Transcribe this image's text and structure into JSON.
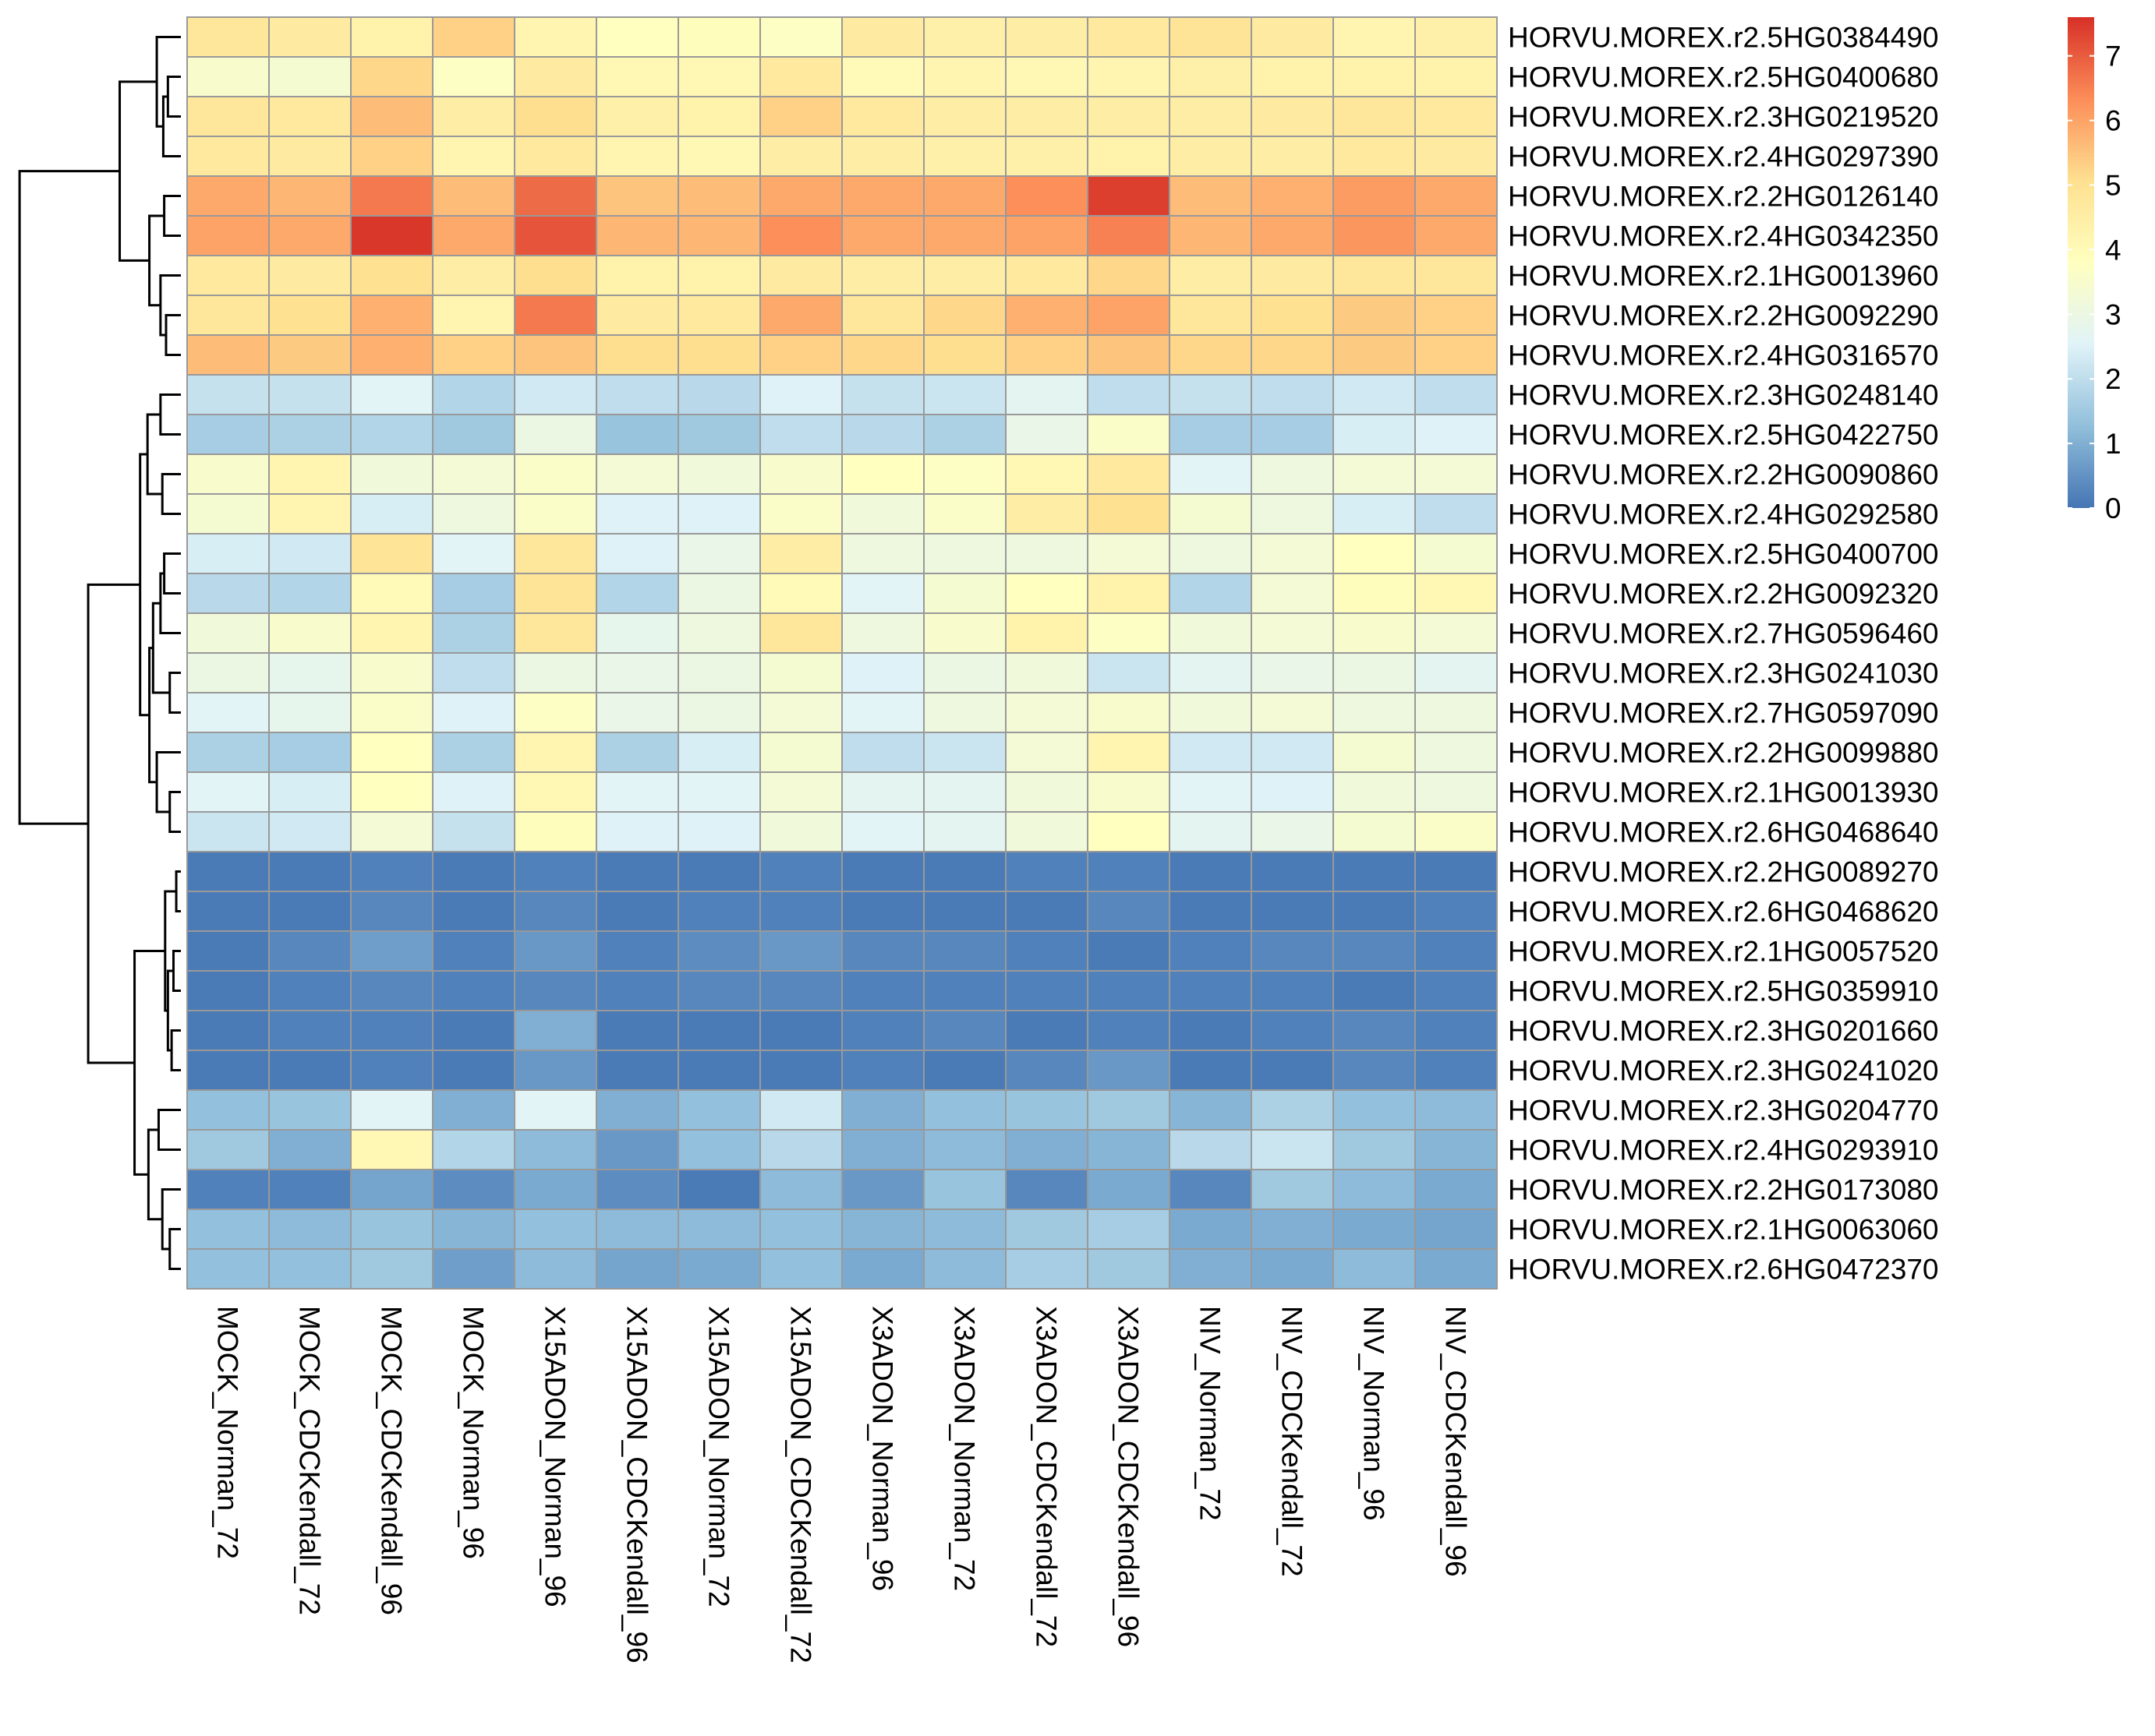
{
  "chart_data": {
    "type": "heatmap",
    "title": "",
    "columns": [
      "MOCK_Norman_72",
      "MOCK_CDCKendall_72",
      "MOCK_CDCKendall_96",
      "MOCK_Norman_96",
      "X15ADON_Norman_96",
      "X15ADON_CDCKendall_96",
      "X15ADON_Norman_72",
      "X15ADON_CDCKendall_72",
      "X3ADON_Norman_96",
      "X3ADON_Norman_72",
      "X3ADON_CDCKendall_72",
      "X3ADON_CDCKendall_96",
      "NIV_Norman_72",
      "NIV_CDCKendall_72",
      "NIV_Norman_96",
      "NIV_CDCKendall_96"
    ],
    "rows": [
      "HORVU.MOREX.r2.5HG0384490",
      "HORVU.MOREX.r2.5HG0400680",
      "HORVU.MOREX.r2.3HG0219520",
      "HORVU.MOREX.r2.4HG0297390",
      "HORVU.MOREX.r2.2HG0126140",
      "HORVU.MOREX.r2.4HG0342350",
      "HORVU.MOREX.r2.1HG0013960",
      "HORVU.MOREX.r2.2HG0092290",
      "HORVU.MOREX.r2.4HG0316570",
      "HORVU.MOREX.r2.3HG0248140",
      "HORVU.MOREX.r2.5HG0422750",
      "HORVU.MOREX.r2.2HG0090860",
      "HORVU.MOREX.r2.4HG0292580",
      "HORVU.MOREX.r2.5HG0400700",
      "HORVU.MOREX.r2.2HG0092320",
      "HORVU.MOREX.r2.7HG0596460",
      "HORVU.MOREX.r2.3HG0241030",
      "HORVU.MOREX.r2.7HG0597090",
      "HORVU.MOREX.r2.2HG0099880",
      "HORVU.MOREX.r2.1HG0013930",
      "HORVU.MOREX.r2.6HG0468640",
      "HORVU.MOREX.r2.2HG0089270",
      "HORVU.MOREX.r2.6HG0468620",
      "HORVU.MOREX.r2.1HG0057520",
      "HORVU.MOREX.r2.5HG0359910",
      "HORVU.MOREX.r2.3HG0201660",
      "HORVU.MOREX.r2.3HG0241020",
      "HORVU.MOREX.r2.3HG0204770",
      "HORVU.MOREX.r2.4HG0293910",
      "HORVU.MOREX.r2.2HG0173080",
      "HORVU.MOREX.r2.1HG0063060",
      "HORVU.MOREX.r2.6HG0472370"
    ],
    "values": [
      [
        4.8,
        4.6,
        4.3,
        5.3,
        4.2,
        3.8,
        3.9,
        3.7,
        4.6,
        4.4,
        4.5,
        4.7,
        4.9,
        4.6,
        4.2,
        4.4
      ],
      [
        3.5,
        3.4,
        5.2,
        3.7,
        4.6,
        4.1,
        4.1,
        4.7,
        4.0,
        4.2,
        4.1,
        4.2,
        4.4,
        4.3,
        4.3,
        4.3
      ],
      [
        4.8,
        4.7,
        5.6,
        4.5,
        5.1,
        4.4,
        4.3,
        5.3,
        4.7,
        4.5,
        4.5,
        4.5,
        4.5,
        4.6,
        4.8,
        4.7
      ],
      [
        4.7,
        4.6,
        5.3,
        4.2,
        4.7,
        4.2,
        4.1,
        4.5,
        4.5,
        4.4,
        4.4,
        4.3,
        4.5,
        4.5,
        4.7,
        4.6
      ],
      [
        5.9,
        5.7,
        6.6,
        5.6,
        6.8,
        5.5,
        5.6,
        5.9,
        5.9,
        5.9,
        6.3,
        7.4,
        5.6,
        5.8,
        6.1,
        5.9
      ],
      [
        6.0,
        5.9,
        7.5,
        5.9,
        7.1,
        5.7,
        5.7,
        6.3,
        5.9,
        5.9,
        6.0,
        6.5,
        5.7,
        5.9,
        6.2,
        5.9
      ],
      [
        4.7,
        4.6,
        5.0,
        4.5,
        5.1,
        4.3,
        4.3,
        4.6,
        4.5,
        4.5,
        4.7,
        5.2,
        4.5,
        4.6,
        4.8,
        4.8
      ],
      [
        4.8,
        5.0,
        5.8,
        4.2,
        6.6,
        4.6,
        4.7,
        5.9,
        4.8,
        5.2,
        5.8,
        6.0,
        4.8,
        5.0,
        5.4,
        5.3
      ],
      [
        5.6,
        5.4,
        5.8,
        5.3,
        5.5,
        5.1,
        5.1,
        5.3,
        5.2,
        5.1,
        5.3,
        5.5,
        5.2,
        5.2,
        5.4,
        5.3
      ],
      [
        2.1,
        2.1,
        2.6,
        1.8,
        2.3,
        2.0,
        1.9,
        2.5,
        2.1,
        2.2,
        2.7,
        2.0,
        2.1,
        2.0,
        2.3,
        2.0
      ],
      [
        1.6,
        1.7,
        1.8,
        1.5,
        3.0,
        1.4,
        1.5,
        2.0,
        1.9,
        1.7,
        2.9,
        3.6,
        1.6,
        1.6,
        2.4,
        2.5
      ],
      [
        3.5,
        4.2,
        3.2,
        3.3,
        3.6,
        3.3,
        3.2,
        3.5,
        3.8,
        3.7,
        4.1,
        4.7,
        2.6,
        3.1,
        3.3,
        3.3
      ],
      [
        3.4,
        4.2,
        2.4,
        3.1,
        3.6,
        2.5,
        2.5,
        3.6,
        3.2,
        3.6,
        4.5,
        5.0,
        3.4,
        3.1,
        2.4,
        2.0
      ],
      [
        2.4,
        2.3,
        4.9,
        2.6,
        4.8,
        2.5,
        2.9,
        4.5,
        3.1,
        3.1,
        3.1,
        3.3,
        3.1,
        3.3,
        3.8,
        3.4
      ],
      [
        1.9,
        1.8,
        4.0,
        1.6,
        4.9,
        1.8,
        3.0,
        4.0,
        2.6,
        3.4,
        3.8,
        4.3,
        1.8,
        3.3,
        3.9,
        4.1
      ],
      [
        3.2,
        3.5,
        4.2,
        1.7,
        4.8,
        2.8,
        3.1,
        4.8,
        3.1,
        3.5,
        4.3,
        3.7,
        3.2,
        3.3,
        3.5,
        3.3
      ],
      [
        3.0,
        2.8,
        3.5,
        2.0,
        3.0,
        2.9,
        3.0,
        3.4,
        2.5,
        3.0,
        3.2,
        2.2,
        2.7,
        2.9,
        3.0,
        2.7
      ],
      [
        2.6,
        2.8,
        3.6,
        2.5,
        3.7,
        2.9,
        3.0,
        3.3,
        2.6,
        3.1,
        3.3,
        3.5,
        3.2,
        3.3,
        3.1,
        3.1
      ],
      [
        1.7,
        1.6,
        3.8,
        1.7,
        4.2,
        1.7,
        2.4,
        3.4,
        2.0,
        2.2,
        3.3,
        4.2,
        2.3,
        2.3,
        3.4,
        3.1
      ],
      [
        2.6,
        2.4,
        3.8,
        2.5,
        4.1,
        2.6,
        2.6,
        3.3,
        2.7,
        2.7,
        3.2,
        3.5,
        2.6,
        2.5,
        3.2,
        3.1
      ],
      [
        2.2,
        2.3,
        3.3,
        2.1,
        3.9,
        2.5,
        2.5,
        3.2,
        2.6,
        2.7,
        3.2,
        3.8,
        2.7,
        2.9,
        3.4,
        3.6
      ],
      [
        0.1,
        0.1,
        0.2,
        0.1,
        0.2,
        0.1,
        0.1,
        0.2,
        0.1,
        0.1,
        0.2,
        0.2,
        0.1,
        0.1,
        0.1,
        0.1
      ],
      [
        0.1,
        0.1,
        0.3,
        0.1,
        0.3,
        0.1,
        0.2,
        0.2,
        0.1,
        0.1,
        0.1,
        0.3,
        0.1,
        0.1,
        0.1,
        0.2
      ],
      [
        0.1,
        0.3,
        0.7,
        0.2,
        0.6,
        0.2,
        0.4,
        0.6,
        0.3,
        0.3,
        0.2,
        0.1,
        0.2,
        0.3,
        0.3,
        0.2
      ],
      [
        0.1,
        0.2,
        0.3,
        0.2,
        0.3,
        0.2,
        0.3,
        0.3,
        0.2,
        0.2,
        0.2,
        0.2,
        0.2,
        0.2,
        0.1,
        0.2
      ],
      [
        0.1,
        0.2,
        0.2,
        0.1,
        1.0,
        0.1,
        0.1,
        0.1,
        0.2,
        0.3,
        0.1,
        0.2,
        0.1,
        0.2,
        0.3,
        0.2
      ],
      [
        0.1,
        0.1,
        0.2,
        0.1,
        0.6,
        0.1,
        0.1,
        0.1,
        0.2,
        0.1,
        0.3,
        0.6,
        0.1,
        0.1,
        0.3,
        0.2
      ],
      [
        1.3,
        1.4,
        2.6,
        1.0,
        2.6,
        1.0,
        1.3,
        2.3,
        1.0,
        1.3,
        1.4,
        1.5,
        1.1,
        1.7,
        1.3,
        1.2
      ],
      [
        1.5,
        1.0,
        4.1,
        1.8,
        1.2,
        0.6,
        1.3,
        1.9,
        1.0,
        1.2,
        1.0,
        1.1,
        1.9,
        2.2,
        1.5,
        1.1
      ],
      [
        0.2,
        0.2,
        0.8,
        0.4,
        0.9,
        0.4,
        0.1,
        1.2,
        0.6,
        1.4,
        0.3,
        0.9,
        0.3,
        1.5,
        1.2,
        0.9
      ],
      [
        1.3,
        1.2,
        1.4,
        1.1,
        1.3,
        1.2,
        1.2,
        1.3,
        1.1,
        1.2,
        1.5,
        1.6,
        0.9,
        1.0,
        0.9,
        0.8
      ],
      [
        1.3,
        1.3,
        1.5,
        0.7,
        1.2,
        0.8,
        0.9,
        1.3,
        0.9,
        1.2,
        1.6,
        1.5,
        1.0,
        0.9,
        1.2,
        0.9
      ]
    ],
    "colorbar": {
      "ticks": [
        0,
        1,
        2,
        3,
        4,
        5,
        6,
        7
      ],
      "range": [
        0,
        7.6
      ],
      "colors": [
        "#4575b4",
        "#91bfdb",
        "#e0f3f8",
        "#ffffbf",
        "#fee090",
        "#fc8d59",
        "#d73027"
      ]
    },
    "grid": true,
    "legend": "colorbar at top-right",
    "row_dendrogram": true,
    "column_labels_rotation": "vertical"
  }
}
